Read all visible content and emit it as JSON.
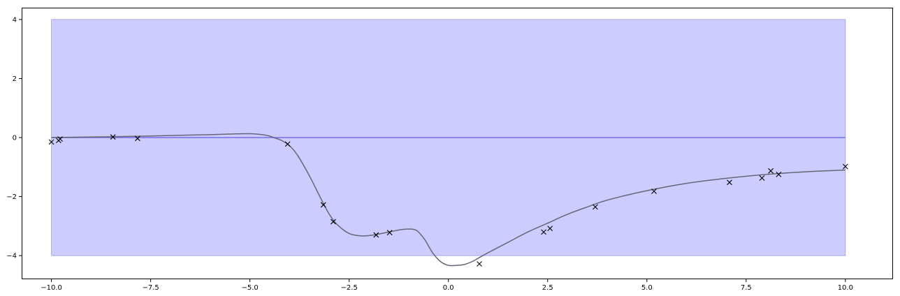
{
  "chart_data": {
    "type": "line",
    "title": "",
    "xlabel": "",
    "ylabel": "",
    "xlim": [
      -10.75,
      11.2
    ],
    "ylim": [
      -4.8,
      4.4
    ],
    "grid": false,
    "x_ticks": [
      -10.0,
      -7.5,
      -5.0,
      -2.5,
      0.0,
      2.5,
      5.0,
      7.5,
      10.0
    ],
    "x_tick_labels": [
      "−10.0",
      "−7.5",
      "−5.0",
      "−2.5",
      "0.0",
      "2.5",
      "5.0",
      "7.5",
      "10.0"
    ],
    "y_ticks": [
      4,
      2,
      0,
      -2,
      -4
    ],
    "y_tick_labels": [
      "4",
      "2",
      "0",
      "−2",
      "−4"
    ],
    "colors": {
      "band_fill": "#ccccff",
      "band_edge": "#9999ee",
      "mean_line": "#7777ee",
      "fit_line": "#666677",
      "markers": "#000000"
    },
    "band": {
      "x": [
        -10.0,
        10.0
      ],
      "lower": -4.0,
      "upper": 4.0
    },
    "reference_line": {
      "y": 0.0,
      "x": [
        -10.0,
        10.0
      ]
    },
    "fit_curve": {
      "x": [
        -10.0,
        -9.0,
        -8.0,
        -7.0,
        -6.0,
        -5.5,
        -5.0,
        -4.6,
        -4.4,
        -4.2,
        -4.0,
        -3.8,
        -3.5,
        -3.2,
        -3.0,
        -2.8,
        -2.5,
        -2.2,
        -2.0,
        -1.8,
        -1.5,
        -1.2,
        -1.0,
        -0.8,
        -0.6,
        -0.4,
        -0.2,
        0.0,
        0.2,
        0.4,
        0.6,
        0.8,
        1.0,
        1.5,
        2.0,
        2.5,
        3.0,
        3.5,
        4.0,
        5.0,
        6.0,
        7.0,
        8.0,
        9.0,
        10.0
      ],
      "y": [
        0.0,
        0.02,
        0.04,
        0.07,
        0.1,
        0.12,
        0.13,
        0.08,
        0.0,
        -0.1,
        -0.28,
        -0.6,
        -1.3,
        -2.1,
        -2.6,
        -2.95,
        -3.25,
        -3.33,
        -3.32,
        -3.28,
        -3.2,
        -3.12,
        -3.1,
        -3.15,
        -3.45,
        -3.9,
        -4.2,
        -4.33,
        -4.33,
        -4.3,
        -4.2,
        -4.05,
        -3.9,
        -3.55,
        -3.2,
        -2.9,
        -2.6,
        -2.35,
        -2.12,
        -1.8,
        -1.55,
        -1.38,
        -1.25,
        -1.16,
        -1.1
      ]
    },
    "observations": {
      "x": [
        -10.0,
        -9.82,
        -9.78,
        -8.45,
        -7.83,
        -4.05,
        -3.15,
        -2.9,
        -1.82,
        -1.48,
        0.78,
        2.4,
        2.56,
        3.7,
        5.18,
        7.08,
        7.9,
        8.12,
        8.32,
        10.0
      ],
      "y": [
        -0.15,
        -0.1,
        -0.05,
        0.02,
        -0.03,
        -0.22,
        -2.28,
        -2.85,
        -3.3,
        -3.22,
        -4.28,
        -3.2,
        -3.08,
        -2.35,
        -1.82,
        -1.52,
        -1.37,
        -1.13,
        -1.25,
        -0.98
      ]
    }
  }
}
